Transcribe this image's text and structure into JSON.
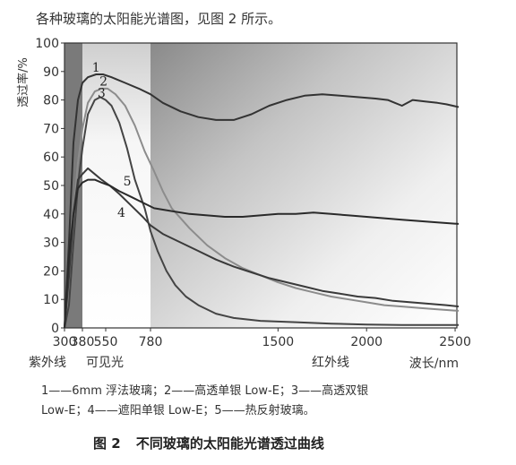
{
  "intro_text": "各种玻璃的太阳能光谱图，见图 2 所示。",
  "caption_lines": [
    "1——6mm 浮法玻璃；2——高透单银 Low-E；3——高透双银",
    "Low-E；4——遮阳单银 Low-E；5——热反射玻璃。"
  ],
  "figure": {
    "number": "图 2",
    "title": "不同玻璃的太阳能光谱透过曲线"
  },
  "chart_data": {
    "type": "line",
    "ylabel": "透过率/%",
    "xlabel": "波长/nm",
    "ylim": [
      0,
      100
    ],
    "y_ticks": [
      0,
      10,
      20,
      30,
      40,
      50,
      60,
      70,
      80,
      90,
      100
    ],
    "x_ticks": [
      {
        "value": 300,
        "label": "300"
      },
      {
        "value": 380,
        "label": "380"
      },
      {
        "value": 550,
        "label": "550"
      },
      {
        "value": 780,
        "label": "780"
      },
      {
        "value": 1500,
        "label": "1500"
      },
      {
        "value": 2000,
        "label": "2000"
      },
      {
        "value": 2500,
        "label": "2500"
      }
    ],
    "regions": [
      {
        "label": "紫外线",
        "from": 300,
        "to": 380,
        "color": "#7a7a7a"
      },
      {
        "label": "可见光",
        "from": 380,
        "to": 780,
        "color": "#f2f2f2"
      },
      {
        "label": "红外线",
        "from": 780,
        "to": 2520,
        "color": "#8a8a8a"
      }
    ],
    "series": [
      {
        "name": "1",
        "color": "#333333",
        "label_at": [
          450,
          90
        ],
        "points": [
          [
            300,
            0
          ],
          [
            320,
            30
          ],
          [
            340,
            65
          ],
          [
            360,
            80
          ],
          [
            380,
            86
          ],
          [
            420,
            88
          ],
          [
            480,
            89
          ],
          [
            530,
            89
          ],
          [
            580,
            88
          ],
          [
            650,
            86
          ],
          [
            720,
            84
          ],
          [
            780,
            82
          ],
          [
            850,
            79
          ],
          [
            950,
            76
          ],
          [
            1050,
            74
          ],
          [
            1150,
            73
          ],
          [
            1250,
            73
          ],
          [
            1350,
            75
          ],
          [
            1450,
            78
          ],
          [
            1550,
            80
          ],
          [
            1650,
            81.5
          ],
          [
            1750,
            82
          ],
          [
            1850,
            81.5
          ],
          [
            1950,
            81
          ],
          [
            2050,
            80.5
          ],
          [
            2120,
            80
          ],
          [
            2160,
            79
          ],
          [
            2200,
            78
          ],
          [
            2260,
            80
          ],
          [
            2330,
            79.5
          ],
          [
            2400,
            79
          ],
          [
            2450,
            78.5
          ],
          [
            2520,
            77.5
          ]
        ]
      },
      {
        "name": "2",
        "color": "#8c8c8c",
        "label_at": [
          505,
          85
        ],
        "points": [
          [
            300,
            0
          ],
          [
            320,
            12
          ],
          [
            340,
            40
          ],
          [
            360,
            58
          ],
          [
            380,
            70
          ],
          [
            420,
            79
          ],
          [
            470,
            83
          ],
          [
            520,
            84
          ],
          [
            560,
            84
          ],
          [
            600,
            82
          ],
          [
            650,
            78
          ],
          [
            700,
            71
          ],
          [
            750,
            62
          ],
          [
            800,
            55
          ],
          [
            850,
            48
          ],
          [
            900,
            42
          ],
          [
            1000,
            35
          ],
          [
            1100,
            29
          ],
          [
            1200,
            24.5
          ],
          [
            1300,
            21
          ],
          [
            1400,
            18.5
          ],
          [
            1500,
            16
          ],
          [
            1600,
            14
          ],
          [
            1700,
            12.5
          ],
          [
            1800,
            11
          ],
          [
            1900,
            10
          ],
          [
            2000,
            9
          ],
          [
            2100,
            8
          ],
          [
            2200,
            7.5
          ],
          [
            2300,
            7
          ],
          [
            2400,
            6.5
          ],
          [
            2520,
            6
          ]
        ]
      },
      {
        "name": "3",
        "color": "#444444",
        "label_at": [
          490,
          81
        ],
        "points": [
          [
            300,
            0
          ],
          [
            320,
            8
          ],
          [
            340,
            30
          ],
          [
            360,
            50
          ],
          [
            380,
            63
          ],
          [
            420,
            75
          ],
          [
            470,
            80
          ],
          [
            510,
            81
          ],
          [
            550,
            80
          ],
          [
            580,
            78
          ],
          [
            620,
            72
          ],
          [
            660,
            63
          ],
          [
            700,
            52
          ],
          [
            750,
            42
          ],
          [
            780,
            34
          ],
          [
            820,
            27
          ],
          [
            870,
            20
          ],
          [
            920,
            15
          ],
          [
            980,
            11
          ],
          [
            1050,
            8
          ],
          [
            1150,
            5
          ],
          [
            1250,
            3.5
          ],
          [
            1400,
            2.5
          ],
          [
            1600,
            2
          ],
          [
            1800,
            1.5
          ],
          [
            2000,
            1.2
          ],
          [
            2200,
            1
          ],
          [
            2520,
            1
          ]
        ]
      },
      {
        "name": "4",
        "color": "#3a3a3a",
        "label_at": [
          610,
          39
        ],
        "points": [
          [
            300,
            0
          ],
          [
            320,
            18
          ],
          [
            340,
            40
          ],
          [
            360,
            52
          ],
          [
            380,
            54
          ],
          [
            420,
            56
          ],
          [
            470,
            54
          ],
          [
            520,
            52
          ],
          [
            570,
            50
          ],
          [
            620,
            47
          ],
          [
            680,
            43
          ],
          [
            740,
            39
          ],
          [
            780,
            36
          ],
          [
            850,
            33
          ],
          [
            950,
            30
          ],
          [
            1050,
            27
          ],
          [
            1150,
            24
          ],
          [
            1250,
            21.5
          ],
          [
            1350,
            19.5
          ],
          [
            1450,
            17.5
          ],
          [
            1550,
            16
          ],
          [
            1650,
            14.5
          ],
          [
            1750,
            13
          ],
          [
            1850,
            12
          ],
          [
            1950,
            11
          ],
          [
            2050,
            10.5
          ],
          [
            2150,
            9.5
          ],
          [
            2250,
            9
          ],
          [
            2350,
            8.5
          ],
          [
            2450,
            8
          ],
          [
            2520,
            7.5
          ]
        ]
      },
      {
        "name": "5",
        "color": "#2a2a2a",
        "label_at": [
          640,
          50
        ],
        "points": [
          [
            300,
            0
          ],
          [
            320,
            25
          ],
          [
            340,
            40
          ],
          [
            360,
            49
          ],
          [
            380,
            51
          ],
          [
            420,
            52
          ],
          [
            470,
            52
          ],
          [
            520,
            51
          ],
          [
            570,
            50
          ],
          [
            620,
            48
          ],
          [
            680,
            46
          ],
          [
            740,
            44
          ],
          [
            800,
            42
          ],
          [
            900,
            41
          ],
          [
            1000,
            40
          ],
          [
            1100,
            39.5
          ],
          [
            1200,
            39
          ],
          [
            1300,
            39
          ],
          [
            1400,
            39.5
          ],
          [
            1500,
            40
          ],
          [
            1600,
            40
          ],
          [
            1700,
            40.5
          ],
          [
            1800,
            40
          ],
          [
            1900,
            39.5
          ],
          [
            2000,
            39
          ],
          [
            2100,
            38.5
          ],
          [
            2200,
            38
          ],
          [
            2300,
            37.5
          ],
          [
            2400,
            37
          ],
          [
            2520,
            36.5
          ]
        ]
      }
    ]
  }
}
